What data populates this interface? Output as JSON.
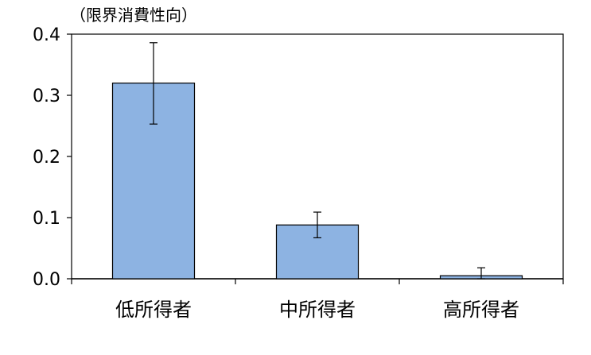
{
  "chart_data": {
    "type": "bar",
    "ylabel": "（限界消費性向）",
    "categories": [
      "低所得者",
      "中所得者",
      "高所得者"
    ],
    "values": [
      0.32,
      0.088,
      0.005
    ],
    "error_upper": [
      0.386,
      0.109,
      0.018
    ],
    "error_lower": [
      0.253,
      0.067,
      0.0
    ],
    "ylim": [
      0.0,
      0.4
    ],
    "yticks": [
      0.0,
      0.1,
      0.2,
      0.3,
      0.4
    ],
    "ytick_labels": [
      "0.0",
      "0.1",
      "0.2",
      "0.3",
      "0.4"
    ],
    "grid": false,
    "bar_color": "#8db3e2",
    "bar_edge_color": "#000000"
  }
}
